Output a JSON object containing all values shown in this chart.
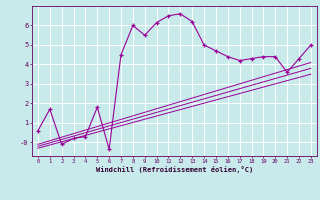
{
  "xlabel": "Windchill (Refroidissement éolien,°C)",
  "bg_color": "#c8eaea",
  "line_color": "#990099",
  "grid_color": "#ffffff",
  "x_data": [
    0,
    1,
    2,
    3,
    4,
    5,
    6,
    7,
    8,
    9,
    10,
    11,
    12,
    13,
    14,
    15,
    16,
    17,
    18,
    19,
    20,
    21,
    22,
    23
  ],
  "y_data": [
    0.6,
    1.7,
    -0.1,
    0.2,
    0.3,
    1.8,
    -0.35,
    4.5,
    6.0,
    5.5,
    6.15,
    6.5,
    6.6,
    6.2,
    5.0,
    4.7,
    4.4,
    4.2,
    4.3,
    4.4,
    4.4,
    3.6,
    4.3,
    5.0
  ],
  "ref_line1_start": -0.3,
  "ref_line1_end": 3.5,
  "ref_line2_start": -0.2,
  "ref_line2_end": 3.8,
  "ref_line3_start": -0.1,
  "ref_line3_end": 4.1,
  "xlim": [
    -0.5,
    23.5
  ],
  "ylim": [
    -0.7,
    7.0
  ],
  "yticks": [
    0,
    1,
    2,
    3,
    4,
    5,
    6
  ],
  "xticks": [
    0,
    1,
    2,
    3,
    4,
    5,
    6,
    7,
    8,
    9,
    10,
    11,
    12,
    13,
    14,
    15,
    16,
    17,
    18,
    19,
    20,
    21,
    22,
    23
  ]
}
